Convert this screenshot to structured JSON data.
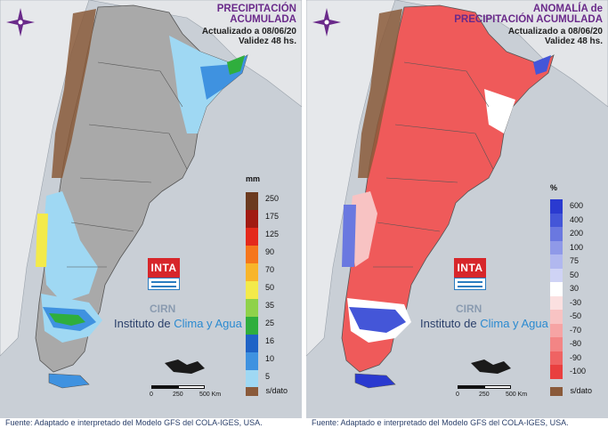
{
  "left_panel": {
    "title_line1": "PRECIPITACIÓN",
    "title_line2": "ACUMULADA",
    "updated": "Actualizado a 08/06/20",
    "validity": "Validez 48 hs.",
    "legend_unit": "mm",
    "legend": [
      {
        "label": "250",
        "color": "#6b3a1f"
      },
      {
        "label": "175",
        "color": "#a11a12"
      },
      {
        "label": "125",
        "color": "#e4291b"
      },
      {
        "label": "90",
        "color": "#f5761c"
      },
      {
        "label": "70",
        "color": "#f8b52a"
      },
      {
        "label": "50",
        "color": "#f3ea4a"
      },
      {
        "label": "35",
        "color": "#8fd24a"
      },
      {
        "label": "25",
        "color": "#2fae3d"
      },
      {
        "label": "16",
        "color": "#1f63c6"
      },
      {
        "label": "10",
        "color": "#3f92e0"
      },
      {
        "label": "5",
        "color": "#9fd8f3"
      }
    ],
    "nodata_label": "s/dato",
    "footer": "Fuente: Adaptado e interpretado del Modelo GFS del COLA-IGES, USA."
  },
  "right_panel": {
    "title_line1": "ANOMALÍA de",
    "title_line2": "PRECIPITACIÓN ACUMULADA",
    "updated": "Actualizado a 08/06/20",
    "validity": "Validez 48 hs.",
    "legend_unit": "%",
    "legend": [
      {
        "label": "600",
        "color": "#2a3ad0"
      },
      {
        "label": "400",
        "color": "#4456d8"
      },
      {
        "label": "200",
        "color": "#6a78e0"
      },
      {
        "label": "100",
        "color": "#8f99e8"
      },
      {
        "label": "75",
        "color": "#b1b8ef"
      },
      {
        "label": "50",
        "color": "#cfd3f5"
      },
      {
        "label": "30",
        "color": "#ffffff"
      },
      {
        "label": "-30",
        "color": "#fbe0e0"
      },
      {
        "label": "-50",
        "color": "#f8c3c3"
      },
      {
        "label": "-70",
        "color": "#f6a4a4"
      },
      {
        "label": "-80",
        "color": "#f38585"
      },
      {
        "label": "-90",
        "color": "#ef6363"
      },
      {
        "label": "-100",
        "color": "#e93f3f"
      }
    ],
    "nodata_label": "s/dato",
    "footer": "Fuente: Adaptado e interpretado del Modelo GFS del COLA-IGES, USA."
  },
  "logo": {
    "inta": "INTA",
    "cirn": "CIRN",
    "instituto_prefix": "Instituto de ",
    "instituto_highlight": "Clima y Agua"
  },
  "scale": {
    "t0": "0",
    "t1": "250",
    "t2": "500 Km"
  },
  "colors": {
    "precip_fill": "#a9a9a9",
    "anomaly_fill": "#ef5a5a",
    "ocean": "#c9cfd6",
    "nodata": "#8a5a3a",
    "title": "#6a2a8a"
  }
}
